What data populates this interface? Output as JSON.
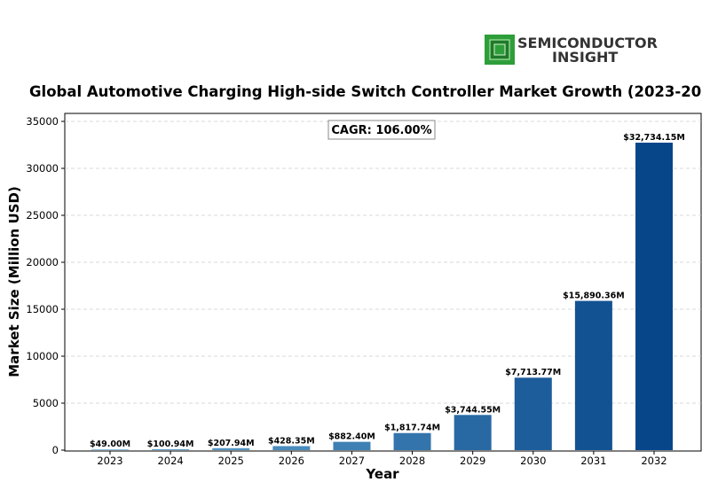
{
  "logo": {
    "line1": "SEMICONDUCTOR",
    "line2": "INSIGHT",
    "icon": "chip-icon",
    "icon_color": "#2e9e3a"
  },
  "annotation": {
    "cagr": "CAGR: 106.00%"
  },
  "colors": {
    "bar_light": "#6aaed6",
    "bar_dark": "#08468a",
    "grid": "#cccccc"
  },
  "chart_data": {
    "type": "bar",
    "title": "Global Automotive Charging High-side Switch Controller Market Growth (2023-20",
    "xlabel": "Year",
    "ylabel": "Market Size (Million USD)",
    "categories": [
      "2023",
      "2024",
      "2025",
      "2026",
      "2027",
      "2028",
      "2029",
      "2030",
      "2031",
      "2032"
    ],
    "values": [
      49.0,
      100.94,
      207.94,
      428.35,
      882.4,
      1817.74,
      3744.55,
      7713.77,
      15890.36,
      32734.15
    ],
    "data_labels": [
      "$49.00M",
      "$100.94M",
      "$207.94M",
      "$428.35M",
      "$882.40M",
      "$1,817.74M",
      "$3,744.55M",
      "$7,713.77M",
      "$15,890.36M",
      "$32,734.15M"
    ],
    "ylim": [
      0,
      35000
    ],
    "yticks": [
      0,
      5000,
      10000,
      15000,
      20000,
      25000,
      30000,
      35000
    ],
    "grid": "horizontal dashed",
    "legend": "none"
  }
}
